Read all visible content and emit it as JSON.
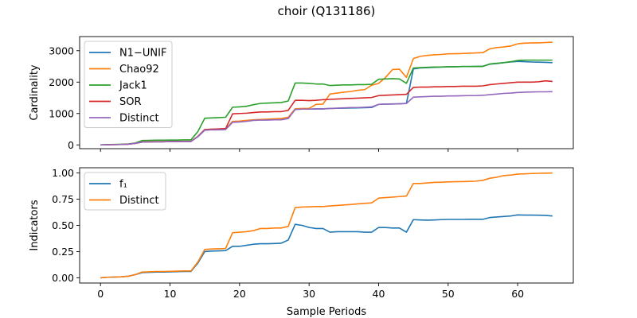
{
  "chart_data": {
    "title": "choir (Q131186)",
    "xlabel": "Sample Periods",
    "type": "line",
    "x": [
      0,
      1,
      2,
      3,
      4,
      5,
      6,
      7,
      8,
      9,
      10,
      11,
      12,
      13,
      14,
      15,
      16,
      17,
      18,
      19,
      20,
      21,
      22,
      23,
      24,
      25,
      26,
      27,
      28,
      29,
      30,
      31,
      32,
      33,
      34,
      35,
      36,
      37,
      38,
      39,
      40,
      41,
      42,
      43,
      44,
      45,
      46,
      47,
      48,
      49,
      50,
      51,
      52,
      53,
      54,
      55,
      56,
      57,
      58,
      59,
      60,
      61,
      62,
      63,
      64,
      65
    ],
    "xlim": [
      -3,
      68
    ],
    "xticks": [
      0,
      10,
      20,
      30,
      40,
      50,
      60
    ],
    "colors": {
      "blue": "#1f77b4",
      "orange": "#ff7f0e",
      "green": "#2ca02c",
      "red": "#d62728",
      "purple": "#9467bd"
    },
    "panels": [
      {
        "ylabel": "Cardinality",
        "ylim": [
          -120,
          3450
        ],
        "yticks": [
          0,
          1000,
          2000,
          3000
        ],
        "legend_position": "upper-left",
        "series": [
          {
            "name": "N1−UNIF",
            "color": "#1f77b4",
            "values": [
              0,
              5,
              10,
              15,
              25,
              50,
              90,
              95,
              100,
              100,
              105,
              105,
              110,
              110,
              260,
              470,
              490,
              495,
              500,
              730,
              740,
              760,
              790,
              800,
              800,
              810,
              820,
              860,
              1130,
              1140,
              1140,
              1145,
              1145,
              1160,
              1165,
              1170,
              1175,
              1180,
              1185,
              1190,
              1290,
              1300,
              1305,
              1310,
              1320,
              2420,
              2450,
              2460,
              2470,
              2480,
              2485,
              2490,
              2495,
              2495,
              2500,
              2505,
              2570,
              2590,
              2620,
              2640,
              2660,
              2650,
              2640,
              2635,
              2630,
              2620
            ]
          },
          {
            "name": "Chao92",
            "color": "#ff7f0e",
            "values": [
              0,
              5,
              10,
              15,
              25,
              50,
              100,
              105,
              110,
              110,
              110,
              110,
              115,
              115,
              270,
              490,
              500,
              500,
              510,
              750,
              760,
              780,
              800,
              810,
              820,
              830,
              840,
              880,
              1150,
              1160,
              1160,
              1290,
              1300,
              1620,
              1650,
              1680,
              1700,
              1740,
              1760,
              1900,
              1960,
              2150,
              2400,
              2410,
              2150,
              2750,
              2820,
              2850,
              2870,
              2880,
              2900,
              2905,
              2910,
              2920,
              2930,
              2940,
              3060,
              3100,
              3120,
              3150,
              3220,
              3240,
              3250,
              3250,
              3260,
              3270
            ]
          },
          {
            "name": "Jack1",
            "color": "#2ca02c",
            "values": [
              0,
              10,
              15,
              20,
              30,
              60,
              140,
              145,
              150,
              150,
              155,
              155,
              160,
              160,
              420,
              850,
              860,
              870,
              880,
              1200,
              1210,
              1230,
              1280,
              1320,
              1330,
              1340,
              1350,
              1400,
              1970,
              1970,
              1960,
              1940,
              1940,
              1890,
              1900,
              1910,
              1910,
              1920,
              1920,
              1930,
              2090,
              2100,
              2110,
              2100,
              1960,
              2450,
              2460,
              2470,
              2480,
              2480,
              2490,
              2490,
              2495,
              2495,
              2500,
              2500,
              2580,
              2600,
              2620,
              2650,
              2690,
              2700,
              2700,
              2700,
              2700,
              2700
            ]
          },
          {
            "name": "SOR",
            "color": "#d62728",
            "values": [
              0,
              5,
              10,
              15,
              25,
              50,
              90,
              95,
              100,
              100,
              105,
              105,
              110,
              110,
              270,
              490,
              500,
              510,
              520,
              990,
              1000,
              1010,
              1030,
              1050,
              1050,
              1060,
              1060,
              1100,
              1420,
              1420,
              1410,
              1420,
              1440,
              1450,
              1460,
              1470,
              1480,
              1490,
              1500,
              1510,
              1570,
              1580,
              1590,
              1600,
              1610,
              1830,
              1840,
              1840,
              1850,
              1850,
              1860,
              1860,
              1870,
              1870,
              1870,
              1880,
              1920,
              1940,
              1960,
              1980,
              2000,
              2000,
              2000,
              2010,
              2040,
              2020
            ]
          },
          {
            "name": "Distinct",
            "color": "#9467bd",
            "values": [
              0,
              5,
              10,
              15,
              25,
              50,
              90,
              95,
              100,
              100,
              105,
              105,
              110,
              110,
              260,
              470,
              480,
              480,
              490,
              720,
              730,
              750,
              780,
              790,
              790,
              800,
              800,
              840,
              1130,
              1140,
              1140,
              1150,
              1150,
              1160,
              1170,
              1180,
              1190,
              1190,
              1200,
              1210,
              1290,
              1300,
              1300,
              1310,
              1320,
              1520,
              1530,
              1540,
              1550,
              1550,
              1560,
              1560,
              1565,
              1570,
              1570,
              1580,
              1600,
              1620,
              1640,
              1650,
              1670,
              1680,
              1685,
              1690,
              1690,
              1695
            ]
          }
        ]
      },
      {
        "ylabel": "Indicators",
        "ylim": [
          -0.05,
          1.05
        ],
        "yticks": [
          "0.00",
          "0.25",
          "0.50",
          "0.75",
          "1.00"
        ],
        "legend_position": "upper-left",
        "series": [
          {
            "name": "f₁",
            "color": "#1f77b4",
            "values": [
              0.0,
              0.005,
              0.007,
              0.009,
              0.015,
              0.03,
              0.05,
              0.052,
              0.055,
              0.055,
              0.057,
              0.058,
              0.06,
              0.06,
              0.14,
              0.25,
              0.255,
              0.257,
              0.26,
              0.3,
              0.3,
              0.31,
              0.32,
              0.325,
              0.325,
              0.327,
              0.33,
              0.36,
              0.51,
              0.5,
              0.48,
              0.47,
              0.47,
              0.435,
              0.44,
              0.44,
              0.44,
              0.44,
              0.435,
              0.435,
              0.48,
              0.48,
              0.475,
              0.475,
              0.435,
              0.555,
              0.552,
              0.55,
              0.552,
              0.555,
              0.557,
              0.557,
              0.557,
              0.558,
              0.558,
              0.558,
              0.575,
              0.58,
              0.585,
              0.59,
              0.6,
              0.598,
              0.598,
              0.597,
              0.595,
              0.59
            ]
          },
          {
            "name": "Distinct",
            "color": "#ff7f0e",
            "values": [
              0.0,
              0.005,
              0.007,
              0.009,
              0.015,
              0.03,
              0.055,
              0.057,
              0.06,
              0.06,
              0.062,
              0.063,
              0.065,
              0.065,
              0.15,
              0.27,
              0.275,
              0.277,
              0.28,
              0.43,
              0.435,
              0.44,
              0.45,
              0.47,
              0.47,
              0.475,
              0.475,
              0.49,
              0.67,
              0.675,
              0.677,
              0.68,
              0.68,
              0.685,
              0.69,
              0.695,
              0.7,
              0.705,
              0.71,
              0.715,
              0.76,
              0.765,
              0.77,
              0.775,
              0.78,
              0.9,
              0.9,
              0.905,
              0.91,
              0.912,
              0.915,
              0.917,
              0.918,
              0.92,
              0.922,
              0.93,
              0.95,
              0.96,
              0.975,
              0.98,
              0.99,
              0.992,
              0.995,
              0.997,
              0.998,
              1.0
            ]
          }
        ]
      }
    ]
  }
}
